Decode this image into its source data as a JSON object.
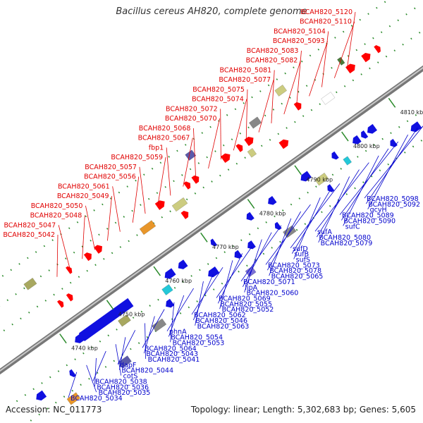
{
  "title": "Bacillus cereus AH820, complete genome",
  "footer": {
    "accession": "Accession: NC_011773",
    "summary": "Topology: linear; Length: 5,302,683 bp; Genes: 5,605"
  },
  "colors": {
    "forward_label": "#e00000",
    "reverse_label": "#0000cc",
    "forward_arrow": "#ff0000",
    "reverse_arrow": "#1010e0",
    "axis": "#999999"
  },
  "ticks": [
    "4740 kbp",
    "4750 kbp",
    "4760 kbp",
    "4770 kbp",
    "4780 kbp",
    "4790 kbp",
    "4800 kbp",
    "4810 kbp"
  ],
  "top_labels": [
    "BCAH820_5120",
    "BCAH820_5110",
    "BCAH820_5104",
    "BCAH820_5093",
    "BCAH820_5083",
    "BCAH820_5082",
    "BCAH820_5081",
    "BCAH820_5077",
    "BCAH820_5075",
    "BCAH820_5074",
    "BCAH820_5072",
    "BCAH820_5070",
    "BCAH820_5068",
    "BCAH820_5067",
    "fbp1",
    "BCAH820_5059",
    "BCAH820_5057",
    "BCAH820_5056",
    "BCAH820_5061",
    "BCAH820_5049",
    "BCAH820_5050",
    "BCAH820_5048",
    "BCAH820_5047",
    "BCAH820_5042"
  ],
  "bottom_labels": [
    "BCAH820_5098",
    "BCAH820_5092",
    "gcvH",
    "BCAH820_5089",
    "BCAH820_5090",
    "sufC",
    "sufA",
    "BCAH820_5080",
    "BCAH820_5079",
    "sufD",
    "sufB",
    "sufS",
    "BCAH820_5073",
    "BCAH820_5078",
    "BCAH820_5065",
    "BCAH820_5071",
    "lipA",
    "BCAH820_5060",
    "BCAH820_5069",
    "BCAH820_5055",
    "BCAH820_5052",
    "BCAH820_5062",
    "BCAH820_5046",
    "BCAH820_5063",
    "phnA",
    "BCAH820_5054",
    "BCAH820_5053",
    "BCAH820_5064",
    "BCAH820_5043",
    "BCAH820_5041",
    "dapF",
    "BCAH820_5044",
    "cotS",
    "BCAH820_5038",
    "BCAH820_5036",
    "BCAH820_5035",
    "BCAH820_5034"
  ]
}
